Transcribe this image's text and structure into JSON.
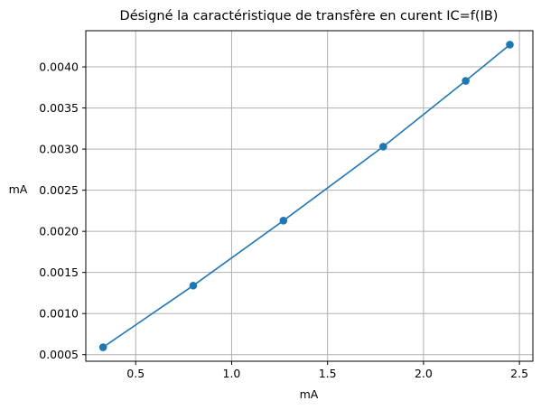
{
  "chart_data": {
    "type": "line",
    "title": "Désigné la caractéristique de transfère en curent IC=f(IB)",
    "xlabel": "mA",
    "ylabel": "mA",
    "xlim": [
      0.24,
      2.57
    ],
    "ylim": [
      0.00042,
      0.00444
    ],
    "xticks": [
      0.5,
      1.0,
      1.5,
      2.0,
      2.5
    ],
    "xtick_labels": [
      "0.5",
      "1.0",
      "1.5",
      "2.0",
      "2.5"
    ],
    "yticks": [
      0.0005,
      0.001,
      0.0015,
      0.002,
      0.0025,
      0.003,
      0.0035,
      0.004
    ],
    "ytick_labels": [
      "0.0005",
      "0.0010",
      "0.0015",
      "0.0020",
      "0.0025",
      "0.0030",
      "0.0035",
      "0.0040"
    ],
    "grid": true,
    "series": [
      {
        "x": [
          0.33,
          0.8,
          1.27,
          1.79,
          2.22,
          2.45
        ],
        "y": [
          0.00059,
          0.00134,
          0.00213,
          0.00303,
          0.00383,
          0.00427
        ],
        "color": "#1f77b4",
        "marker": "circle"
      }
    ]
  }
}
